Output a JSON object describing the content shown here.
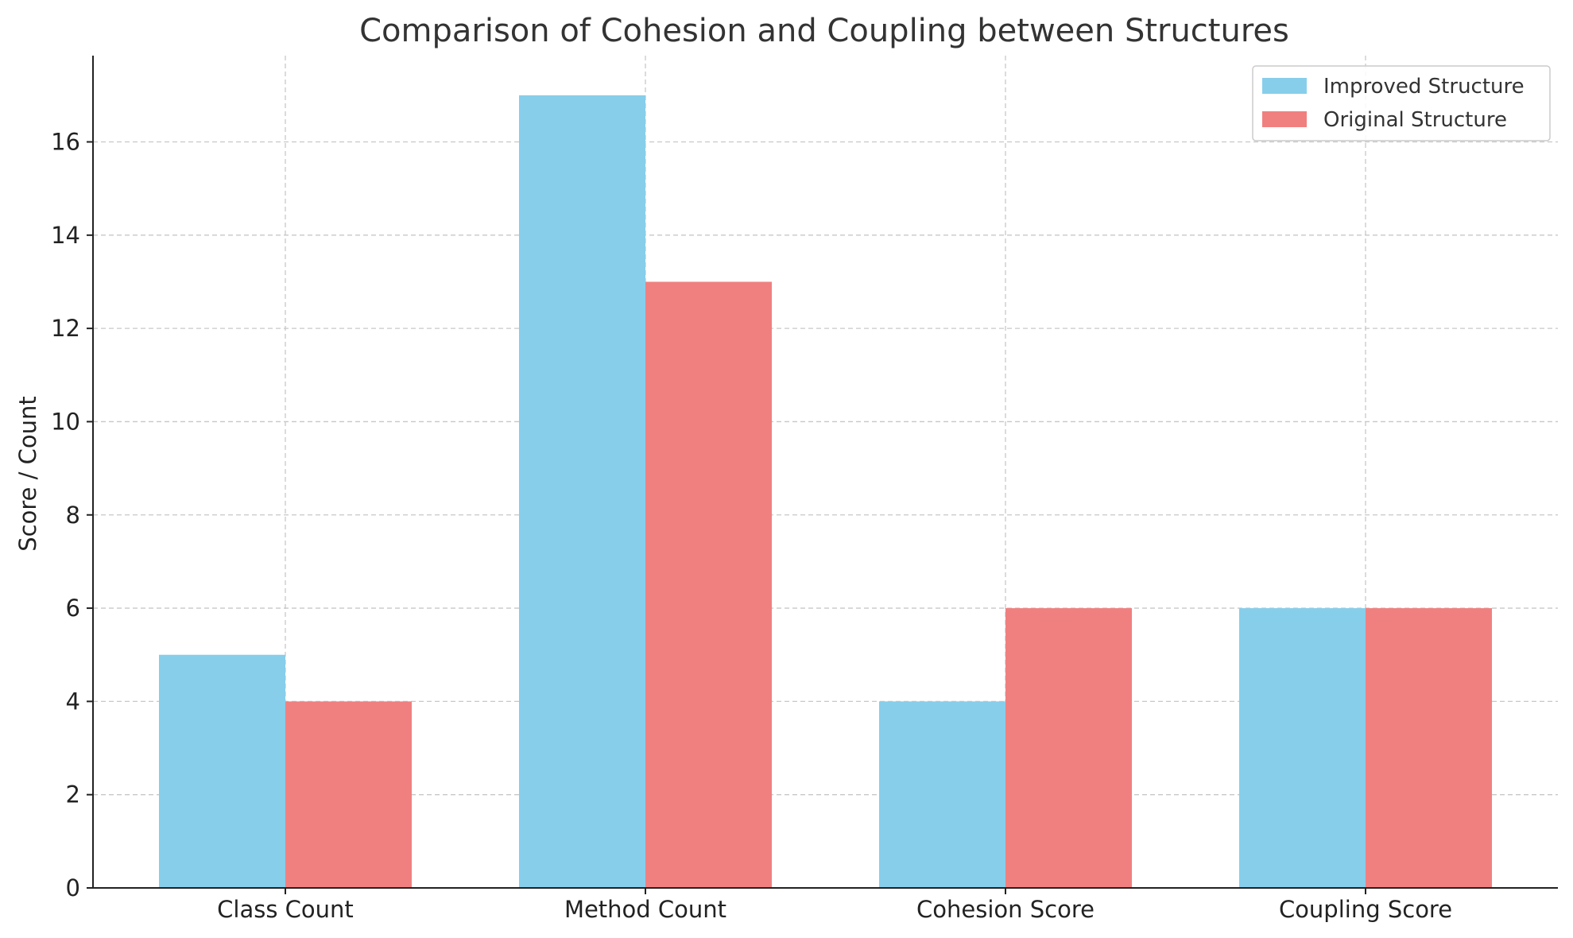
{
  "chart_data": {
    "type": "bar",
    "title": "Comparison of Cohesion and Coupling between Structures",
    "xlabel": "",
    "ylabel": "Score / Count",
    "categories": [
      "Class Count",
      "Method Count",
      "Cohesion Score",
      "Coupling Score"
    ],
    "series": [
      {
        "name": "Improved Structure",
        "color": "#87CEEB",
        "values": [
          5,
          17,
          4,
          6
        ]
      },
      {
        "name": "Original Structure",
        "color": "#F08080",
        "values": [
          4,
          13,
          6,
          6
        ]
      }
    ],
    "yticks": [
      0,
      2,
      4,
      6,
      8,
      10,
      12,
      14,
      16
    ],
    "ylim": [
      0,
      17.85
    ],
    "grid": true,
    "legend_position": "top-right"
  }
}
